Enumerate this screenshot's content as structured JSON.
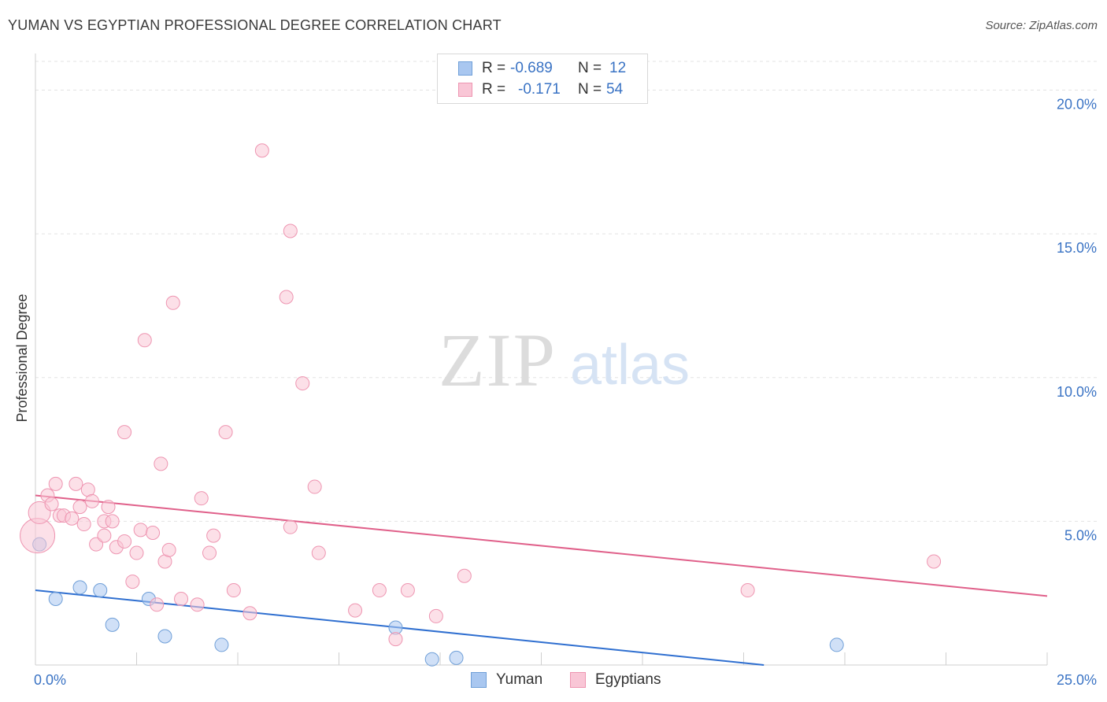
{
  "title": "YUMAN VS EGYPTIAN PROFESSIONAL DEGREE CORRELATION CHART",
  "source": "Source: ZipAtlas.com",
  "watermark": {
    "zip": "ZIP",
    "atlas": "atlas"
  },
  "legend": {
    "rows": [
      {
        "r_label": "R =",
        "r_value": "-0.689",
        "n_label": "N =",
        "n_value": "12",
        "color": "#a9c7f0",
        "border": "#6f9fd8"
      },
      {
        "r_label": "R =",
        "r_value": "-0.171",
        "n_label": "N =",
        "n_value": "54",
        "color": "#f9c6d6",
        "border": "#ee95b1"
      }
    ]
  },
  "bottom_legend": [
    {
      "name": "Yuman",
      "color": "#a9c7f0",
      "border": "#6f9fd8"
    },
    {
      "name": "Egyptians",
      "color": "#f9c6d6",
      "border": "#ee95b1"
    }
  ],
  "chart_data": {
    "type": "scatter",
    "title": "YUMAN VS EGYPTIAN PROFESSIONAL DEGREE CORRELATION CHART",
    "xlabel": "",
    "ylabel": "Professional Degree",
    "xlim": [
      0,
      25
    ],
    "ylim": [
      0,
      21
    ],
    "x_tick_labels": [
      "0.0%",
      "25.0%"
    ],
    "y_ticks": [
      5,
      10,
      15,
      20
    ],
    "y_tick_labels": [
      "5.0%",
      "10.0%",
      "15.0%",
      "20.0%"
    ],
    "grid": true,
    "series": [
      {
        "name": "Yuman",
        "color": "#a9c7f0",
        "stroke": "#6f9fd8",
        "line_color": "#2f6fd0",
        "trend": [
          [
            0,
            2.6
          ],
          [
            18,
            0.0
          ]
        ],
        "points": [
          [
            0.1,
            4.2
          ],
          [
            0.5,
            2.3
          ],
          [
            1.1,
            2.7
          ],
          [
            1.6,
            2.6
          ],
          [
            1.9,
            1.4
          ],
          [
            2.8,
            2.3
          ],
          [
            3.2,
            1.0
          ],
          [
            4.6,
            0.7
          ],
          [
            8.9,
            1.3
          ],
          [
            9.8,
            0.2
          ],
          [
            10.4,
            0.25
          ],
          [
            19.8,
            0.7
          ]
        ]
      },
      {
        "name": "Egyptians",
        "color": "#f9c6d6",
        "stroke": "#ee95b1",
        "line_color": "#e0608a",
        "trend": [
          [
            0,
            5.9
          ],
          [
            25,
            2.4
          ]
        ],
        "points": [
          [
            0.05,
            4.5
          ],
          [
            0.1,
            5.3
          ],
          [
            0.3,
            5.9
          ],
          [
            0.4,
            5.6
          ],
          [
            0.5,
            6.3
          ],
          [
            0.6,
            5.2
          ],
          [
            0.7,
            5.2
          ],
          [
            0.9,
            5.1
          ],
          [
            1.0,
            6.3
          ],
          [
            1.1,
            5.5
          ],
          [
            1.2,
            4.9
          ],
          [
            1.3,
            6.1
          ],
          [
            1.4,
            5.7
          ],
          [
            1.5,
            4.2
          ],
          [
            1.7,
            5.0
          ],
          [
            1.7,
            4.5
          ],
          [
            1.8,
            5.5
          ],
          [
            1.9,
            5.0
          ],
          [
            2.0,
            4.1
          ],
          [
            2.2,
            4.3
          ],
          [
            2.2,
            8.1
          ],
          [
            2.4,
            2.9
          ],
          [
            2.5,
            3.9
          ],
          [
            2.6,
            4.7
          ],
          [
            2.7,
            11.3
          ],
          [
            2.9,
            4.6
          ],
          [
            3.0,
            2.1
          ],
          [
            3.1,
            7.0
          ],
          [
            3.2,
            3.6
          ],
          [
            3.3,
            4.0
          ],
          [
            3.4,
            12.6
          ],
          [
            3.6,
            2.3
          ],
          [
            4.0,
            2.1
          ],
          [
            4.1,
            5.8
          ],
          [
            4.3,
            3.9
          ],
          [
            4.4,
            4.5
          ],
          [
            4.7,
            8.1
          ],
          [
            4.9,
            2.6
          ],
          [
            5.3,
            1.8
          ],
          [
            6.2,
            12.8
          ],
          [
            6.3,
            15.1
          ],
          [
            6.3,
            4.8
          ],
          [
            6.6,
            9.8
          ],
          [
            6.9,
            6.2
          ],
          [
            7.0,
            3.9
          ],
          [
            7.9,
            1.9
          ],
          [
            8.5,
            2.6
          ],
          [
            8.9,
            0.9
          ],
          [
            9.2,
            2.6
          ],
          [
            9.9,
            1.7
          ],
          [
            10.6,
            3.1
          ],
          [
            17.6,
            2.6
          ],
          [
            22.2,
            3.6
          ],
          [
            5.6,
            17.9
          ]
        ]
      }
    ]
  }
}
